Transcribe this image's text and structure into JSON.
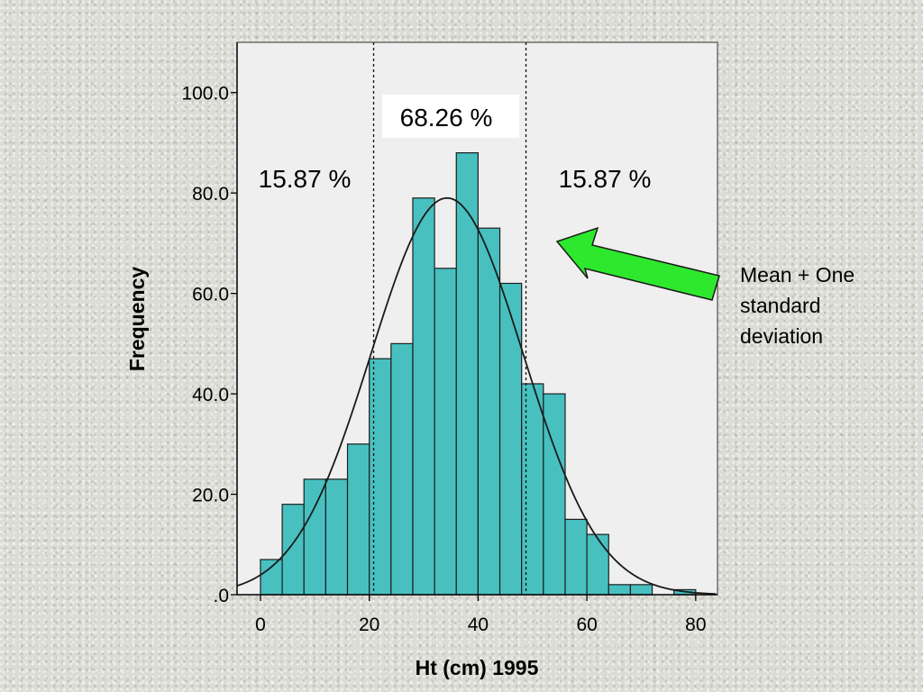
{
  "colors": {
    "bar_fill": "#48c0c0",
    "bar_stroke": "#1e1e1e",
    "plot_bg": "#efefef",
    "curve": "#1a1a1a",
    "arrow_fill": "#2ee82e",
    "label_box": "#ffffff"
  },
  "chart_data": {
    "type": "bar",
    "title": "",
    "xlabel": "Ht (cm) 1995",
    "ylabel": "Frequency",
    "xlim": [
      -4.3,
      84
    ],
    "ylim": [
      0,
      110
    ],
    "x_ticks": [
      0,
      20,
      40,
      60,
      80
    ],
    "x_tick_labels": [
      "0",
      "20",
      "40",
      "60",
      "80"
    ],
    "y_ticks": [
      0,
      20,
      40,
      60,
      80,
      100
    ],
    "y_tick_labels": [
      ".0",
      "20.0",
      "40.0",
      "60.0",
      "80.0",
      "100.0"
    ],
    "bin_width": 4,
    "bin_starts": [
      0,
      4,
      8,
      12,
      16,
      20,
      24,
      28,
      32,
      36,
      40,
      44,
      48,
      52,
      56,
      60,
      64,
      68,
      72,
      76
    ],
    "values": [
      7,
      18,
      23,
      23,
      30,
      47,
      50,
      79,
      65,
      88,
      73,
      62,
      42,
      40,
      15,
      12,
      2,
      2,
      0,
      1
    ],
    "normal_curve": {
      "mean": 34.3,
      "sd": 14,
      "peak": 79
    },
    "reference_lines_x": [
      20.8,
      48.8
    ],
    "grid": false,
    "legend": "none",
    "annotations": {
      "center_pct": "68.26 %",
      "left_pct": "15.87 %",
      "right_pct": "15.87 %",
      "note_lines": [
        "Mean + One",
        "standard",
        "deviation"
      ]
    }
  }
}
